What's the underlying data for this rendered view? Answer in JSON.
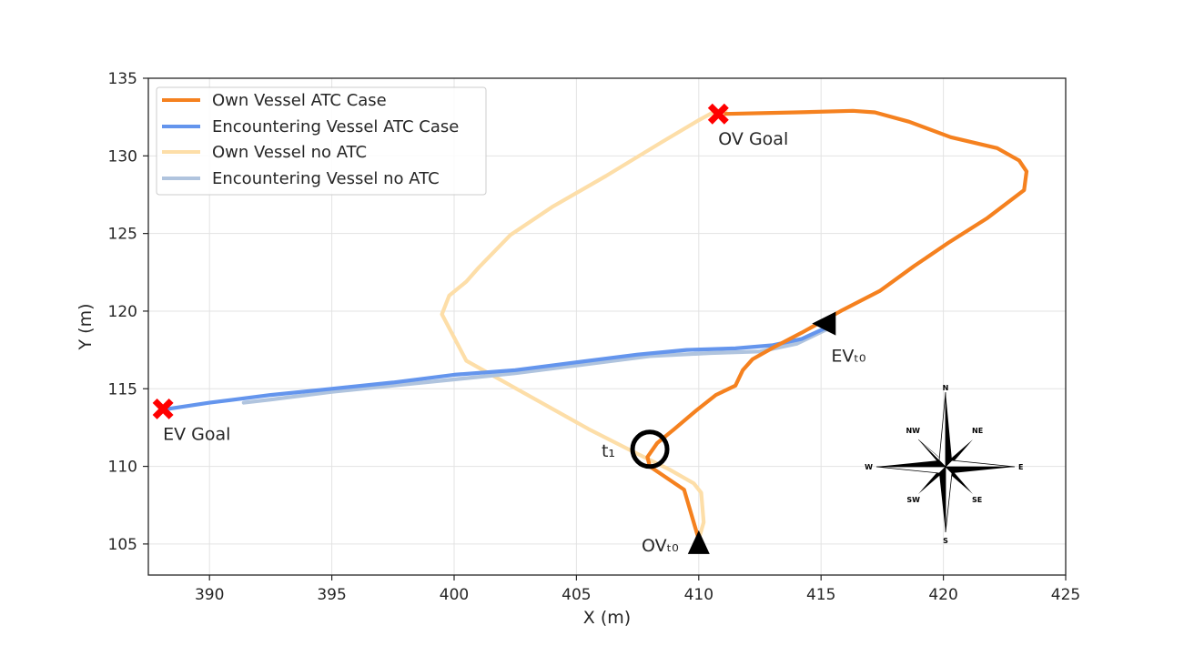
{
  "chart_data": {
    "type": "line",
    "xlabel": "X (m)",
    "ylabel": "Y (m)",
    "xlim": [
      387.5,
      425
    ],
    "ylim": [
      103,
      135
    ],
    "xticks": [
      390,
      395,
      400,
      405,
      410,
      415,
      420,
      425
    ],
    "yticks": [
      105,
      110,
      115,
      120,
      125,
      130,
      135
    ],
    "grid": true,
    "legend_position": "top-left",
    "series": [
      {
        "name": "Own Vessel ATC Case",
        "color": "#f5811f",
        "points": [
          [
            410,
            105.3
          ],
          [
            409.4,
            108.5
          ],
          [
            408,
            110
          ],
          [
            407.9,
            110.6
          ],
          [
            408.3,
            111.5
          ],
          [
            409,
            112.4
          ],
          [
            409.9,
            113.6
          ],
          [
            410.7,
            114.6
          ],
          [
            411.5,
            115.2
          ],
          [
            411.8,
            116.2
          ],
          [
            412.2,
            116.9
          ],
          [
            413.1,
            117.7
          ],
          [
            414.2,
            118.6
          ],
          [
            415.8,
            120
          ],
          [
            417.4,
            121.3
          ],
          [
            418.8,
            122.9
          ],
          [
            420.2,
            124.4
          ],
          [
            421.8,
            126
          ],
          [
            423.3,
            127.8
          ],
          [
            423.4,
            129
          ],
          [
            423.1,
            129.7
          ],
          [
            422.2,
            130.5
          ],
          [
            420.3,
            131.2
          ],
          [
            418.6,
            132.2
          ],
          [
            417.2,
            132.8
          ],
          [
            416.3,
            132.9
          ],
          [
            414,
            132.8
          ],
          [
            411.1,
            132.7
          ]
        ]
      },
      {
        "name": "Encountering Vessel ATC Case",
        "color": "#6495ed",
        "points": [
          [
            415.3,
            119
          ],
          [
            414.2,
            118.2
          ],
          [
            413,
            117.8
          ],
          [
            411.5,
            117.6
          ],
          [
            409.5,
            117.5
          ],
          [
            407.5,
            117.2
          ],
          [
            405,
            116.7
          ],
          [
            402.5,
            116.2
          ],
          [
            400,
            115.9
          ],
          [
            397.5,
            115.4
          ],
          [
            395,
            115
          ],
          [
            392.5,
            114.6
          ],
          [
            390,
            114.1
          ],
          [
            388.3,
            113.7
          ]
        ]
      },
      {
        "name": "Own Vessel no ATC",
        "color": "#fddea8",
        "points": [
          [
            410,
            105.3
          ],
          [
            410.2,
            106.4
          ],
          [
            410.1,
            108.3
          ],
          [
            409.8,
            108.9
          ],
          [
            408.8,
            109.8
          ],
          [
            407.5,
            110.8
          ],
          [
            405.5,
            112.4
          ],
          [
            403,
            114.6
          ],
          [
            400.5,
            116.8
          ],
          [
            399.5,
            119.8
          ],
          [
            399.8,
            121
          ],
          [
            400.5,
            121.9
          ],
          [
            401,
            122.8
          ],
          [
            402.3,
            124.9
          ],
          [
            404,
            126.7
          ],
          [
            406.2,
            128.7
          ],
          [
            408.5,
            130.9
          ],
          [
            410,
            132.3
          ],
          [
            410.7,
            132.9
          ],
          [
            411.1,
            132.9
          ]
        ]
      },
      {
        "name": "Encountering Vessel no ATC",
        "color": "#b0c4de",
        "points": [
          [
            415.2,
            118.8
          ],
          [
            414,
            117.9
          ],
          [
            412.5,
            117.4
          ],
          [
            410.5,
            117.3
          ],
          [
            408,
            117.1
          ],
          [
            405,
            116.5
          ],
          [
            402.5,
            116
          ],
          [
            400,
            115.6
          ],
          [
            397.5,
            115.2
          ],
          [
            395,
            114.8
          ],
          [
            392.5,
            114.3
          ],
          [
            391.4,
            114.1
          ]
        ]
      }
    ],
    "markers": [
      {
        "type": "goal",
        "x": 410.8,
        "y": 132.7,
        "label": "OV Goal"
      },
      {
        "type": "goal",
        "x": 388.1,
        "y": 113.7,
        "label": "EV Goal"
      },
      {
        "type": "start",
        "direction": "up",
        "x": 410,
        "y": 105,
        "label": "OVₜ₀"
      },
      {
        "type": "start",
        "direction": "left",
        "x": 415.6,
        "y": 119.2,
        "label": "EVₜ₀"
      },
      {
        "type": "circle",
        "x": 408,
        "y": 111.1,
        "label": "t₁"
      }
    ]
  },
  "compass": {
    "n": "N",
    "s": "S",
    "e": "E",
    "w": "W",
    "ne": "NE",
    "nw": "NW",
    "se": "SE",
    "sw": "SW"
  }
}
